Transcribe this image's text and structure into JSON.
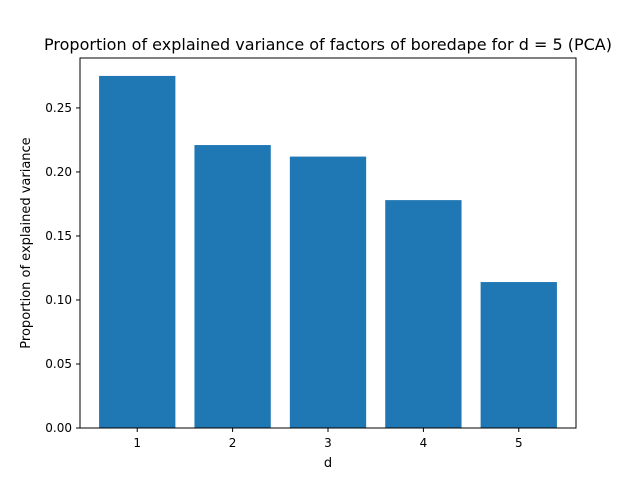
{
  "chart_data": {
    "type": "bar",
    "title": "Proportion of explained variance of factors of boredape for d = 5 (PCA)",
    "xlabel": "d",
    "ylabel": "Proportion of explained variance",
    "categories": [
      "1",
      "2",
      "3",
      "4",
      "5"
    ],
    "values": [
      0.275,
      0.221,
      0.212,
      0.178,
      0.114
    ],
    "ylim": [
      0,
      0.289
    ],
    "yticks": [
      "0.00",
      "0.05",
      "0.10",
      "0.15",
      "0.20",
      "0.25"
    ],
    "bar_color": "#1f77b4",
    "grid": false
  }
}
